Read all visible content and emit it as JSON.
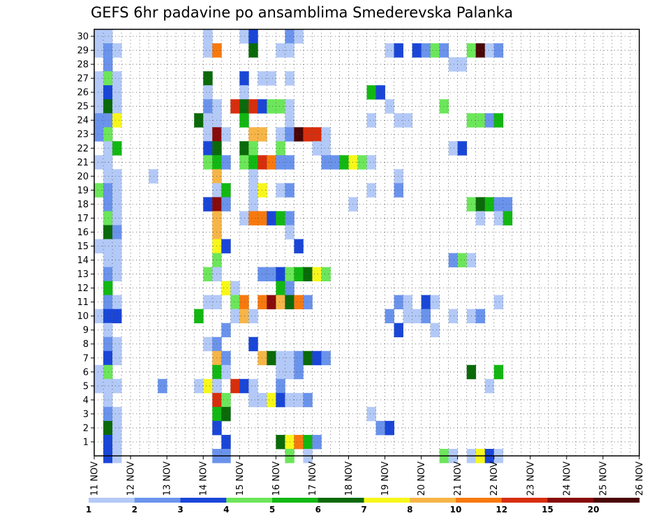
{
  "chart_data": {
    "type": "heatmap",
    "title": "GEFS 6hr padavine po ansamblima Smederevska Palanka",
    "xlabel": "",
    "ylabel": "",
    "x_ticks": [
      "11 NOV",
      "12 NOV",
      "13 NOV",
      "14 NOV",
      "15 NOV",
      "16 NOV",
      "17 NOV",
      "18 NOV",
      "19 NOV",
      "20 NOV",
      "21 NOV",
      "22 NOV",
      "23 NOV",
      "24 NOV",
      "25 NOV",
      "26 NOV"
    ],
    "x_range_days": [
      0,
      15
    ],
    "y_range": [
      0,
      30
    ],
    "y_ticks": [
      1,
      2,
      3,
      4,
      5,
      6,
      7,
      8,
      9,
      10,
      11,
      12,
      13,
      14,
      15,
      16,
      17,
      18,
      19,
      20,
      21,
      22,
      23,
      24,
      25,
      26,
      27,
      28,
      29,
      30
    ],
    "grid": true,
    "time_step_hours": 6,
    "colorbar": {
      "labels": [
        "1",
        "2",
        "3",
        "4",
        "5",
        "6",
        "7",
        "8",
        "10",
        "12",
        "15",
        "20"
      ],
      "colors": [
        "#b3c9f7",
        "#6a93ec",
        "#1a46d8",
        "#6ce65a",
        "#12b812",
        "#0a6a0a",
        "#f7f71a",
        "#f7b547",
        "#f7790d",
        "#d72e0d",
        "#880a0a",
        "#4a0505"
      ]
    },
    "cells": [
      [
        0,
        30,
        1
      ],
      [
        1,
        30,
        1
      ],
      [
        12,
        30,
        1
      ],
      [
        16,
        30,
        1
      ],
      [
        17,
        30,
        3
      ],
      [
        21,
        30,
        2
      ],
      [
        22,
        30,
        1
      ],
      [
        0,
        29,
        1
      ],
      [
        1,
        29,
        2
      ],
      [
        2,
        29,
        1
      ],
      [
        12,
        29,
        1
      ],
      [
        13,
        29,
        9
      ],
      [
        17,
        29,
        6
      ],
      [
        20,
        29,
        1
      ],
      [
        21,
        29,
        1
      ],
      [
        32,
        29,
        1
      ],
      [
        33,
        29,
        3
      ],
      [
        35,
        29,
        3
      ],
      [
        36,
        29,
        2
      ],
      [
        37,
        29,
        4
      ],
      [
        38,
        29,
        2
      ],
      [
        41,
        29,
        4
      ],
      [
        42,
        29,
        12
      ],
      [
        43,
        29,
        1
      ],
      [
        44,
        29,
        2
      ],
      [
        1,
        28,
        2
      ],
      [
        39,
        28,
        1
      ],
      [
        40,
        28,
        1
      ],
      [
        0,
        27,
        1
      ],
      [
        1,
        27,
        4
      ],
      [
        2,
        27,
        1
      ],
      [
        12,
        27,
        6
      ],
      [
        16,
        27,
        3
      ],
      [
        18,
        27,
        1
      ],
      [
        19,
        27,
        1
      ],
      [
        21,
        27,
        1
      ],
      [
        0,
        26,
        1
      ],
      [
        1,
        26,
        3
      ],
      [
        2,
        26,
        1
      ],
      [
        12,
        26,
        1
      ],
      [
        16,
        26,
        1
      ],
      [
        30,
        26,
        5
      ],
      [
        31,
        26,
        3
      ],
      [
        0,
        25,
        1
      ],
      [
        1,
        25,
        6
      ],
      [
        2,
        25,
        1
      ],
      [
        12,
        25,
        2
      ],
      [
        13,
        25,
        1
      ],
      [
        15,
        25,
        10
      ],
      [
        16,
        25,
        6
      ],
      [
        17,
        25,
        10
      ],
      [
        18,
        25,
        3
      ],
      [
        19,
        25,
        4
      ],
      [
        20,
        25,
        4
      ],
      [
        21,
        25,
        1
      ],
      [
        32,
        25,
        1
      ],
      [
        38,
        25,
        4
      ],
      [
        0,
        24,
        2
      ],
      [
        1,
        24,
        2
      ],
      [
        2,
        24,
        7
      ],
      [
        11,
        24,
        6
      ],
      [
        12,
        24,
        1
      ],
      [
        13,
        24,
        1
      ],
      [
        16,
        24,
        5
      ],
      [
        21,
        24,
        1
      ],
      [
        30,
        24,
        1
      ],
      [
        33,
        24,
        1
      ],
      [
        34,
        24,
        1
      ],
      [
        41,
        24,
        4
      ],
      [
        42,
        24,
        4
      ],
      [
        43,
        24,
        2
      ],
      [
        44,
        24,
        5
      ],
      [
        0,
        23,
        2
      ],
      [
        1,
        23,
        4
      ],
      [
        12,
        23,
        1
      ],
      [
        13,
        23,
        11
      ],
      [
        14,
        23,
        1
      ],
      [
        17,
        23,
        8
      ],
      [
        18,
        23,
        8
      ],
      [
        20,
        23,
        1
      ],
      [
        21,
        23,
        2
      ],
      [
        22,
        23,
        12
      ],
      [
        23,
        23,
        10
      ],
      [
        24,
        23,
        10
      ],
      [
        25,
        23,
        1
      ],
      [
        1,
        22,
        1
      ],
      [
        2,
        22,
        5
      ],
      [
        12,
        22,
        3
      ],
      [
        13,
        22,
        6
      ],
      [
        16,
        22,
        6
      ],
      [
        17,
        22,
        4
      ],
      [
        20,
        22,
        4
      ],
      [
        24,
        22,
        1
      ],
      [
        25,
        22,
        1
      ],
      [
        39,
        22,
        1
      ],
      [
        40,
        22,
        3
      ],
      [
        0,
        21,
        1
      ],
      [
        1,
        21,
        1
      ],
      [
        12,
        21,
        4
      ],
      [
        13,
        21,
        5
      ],
      [
        14,
        21,
        2
      ],
      [
        16,
        21,
        4
      ],
      [
        17,
        21,
        5
      ],
      [
        18,
        21,
        10
      ],
      [
        19,
        21,
        9
      ],
      [
        20,
        21,
        2
      ],
      [
        21,
        21,
        2
      ],
      [
        25,
        21,
        2
      ],
      [
        26,
        21,
        2
      ],
      [
        27,
        21,
        5
      ],
      [
        28,
        21,
        7
      ],
      [
        29,
        21,
        4
      ],
      [
        30,
        21,
        1
      ],
      [
        1,
        20,
        1
      ],
      [
        2,
        20,
        1
      ],
      [
        6,
        20,
        1
      ],
      [
        13,
        20,
        8
      ],
      [
        17,
        20,
        1
      ],
      [
        33,
        20,
        1
      ],
      [
        0,
        19,
        4
      ],
      [
        1,
        19,
        2
      ],
      [
        2,
        19,
        1
      ],
      [
        13,
        19,
        1
      ],
      [
        14,
        19,
        5
      ],
      [
        17,
        19,
        1
      ],
      [
        18,
        19,
        7
      ],
      [
        20,
        19,
        1
      ],
      [
        21,
        19,
        2
      ],
      [
        30,
        19,
        1
      ],
      [
        33,
        19,
        2
      ],
      [
        1,
        18,
        2
      ],
      [
        2,
        18,
        1
      ],
      [
        12,
        18,
        3
      ],
      [
        13,
        18,
        11
      ],
      [
        14,
        18,
        2
      ],
      [
        17,
        18,
        1
      ],
      [
        28,
        18,
        1
      ],
      [
        41,
        18,
        4
      ],
      [
        42,
        18,
        6
      ],
      [
        43,
        18,
        5
      ],
      [
        44,
        18,
        2
      ],
      [
        45,
        18,
        2
      ],
      [
        1,
        17,
        4
      ],
      [
        2,
        17,
        1
      ],
      [
        13,
        17,
        8
      ],
      [
        16,
        17,
        1
      ],
      [
        17,
        17,
        9
      ],
      [
        18,
        17,
        9
      ],
      [
        19,
        17,
        3
      ],
      [
        20,
        17,
        5
      ],
      [
        21,
        17,
        2
      ],
      [
        42,
        17,
        1
      ],
      [
        44,
        17,
        1
      ],
      [
        45,
        17,
        5
      ],
      [
        1,
        16,
        6
      ],
      [
        2,
        16,
        2
      ],
      [
        13,
        16,
        8
      ],
      [
        21,
        16,
        1
      ],
      [
        0,
        15,
        1
      ],
      [
        1,
        15,
        1
      ],
      [
        2,
        15,
        1
      ],
      [
        13,
        15,
        7
      ],
      [
        14,
        15,
        3
      ],
      [
        22,
        15,
        3
      ],
      [
        1,
        14,
        1
      ],
      [
        2,
        14,
        1
      ],
      [
        13,
        14,
        4
      ],
      [
        39,
        14,
        2
      ],
      [
        40,
        14,
        4
      ],
      [
        41,
        14,
        1
      ],
      [
        1,
        13,
        2
      ],
      [
        2,
        13,
        1
      ],
      [
        12,
        13,
        4
      ],
      [
        13,
        13,
        1
      ],
      [
        18,
        13,
        2
      ],
      [
        19,
        13,
        2
      ],
      [
        20,
        13,
        3
      ],
      [
        21,
        13,
        4
      ],
      [
        22,
        13,
        5
      ],
      [
        23,
        13,
        6
      ],
      [
        24,
        13,
        7
      ],
      [
        25,
        13,
        4
      ],
      [
        1,
        12,
        5
      ],
      [
        14,
        12,
        7
      ],
      [
        15,
        12,
        1
      ],
      [
        20,
        12,
        5
      ],
      [
        21,
        12,
        2
      ],
      [
        1,
        11,
        2
      ],
      [
        2,
        11,
        1
      ],
      [
        12,
        11,
        1
      ],
      [
        13,
        11,
        1
      ],
      [
        15,
        11,
        4
      ],
      [
        16,
        11,
        9
      ],
      [
        18,
        11,
        9
      ],
      [
        19,
        11,
        11
      ],
      [
        20,
        11,
        8
      ],
      [
        21,
        11,
        6
      ],
      [
        22,
        11,
        9
      ],
      [
        23,
        11,
        2
      ],
      [
        33,
        11,
        2
      ],
      [
        34,
        11,
        1
      ],
      [
        36,
        11,
        3
      ],
      [
        37,
        11,
        1
      ],
      [
        44,
        11,
        1
      ],
      [
        0,
        10,
        1
      ],
      [
        1,
        10,
        3
      ],
      [
        2,
        10,
        3
      ],
      [
        11,
        10,
        5
      ],
      [
        15,
        10,
        1
      ],
      [
        16,
        10,
        8
      ],
      [
        17,
        10,
        1
      ],
      [
        32,
        10,
        2
      ],
      [
        34,
        10,
        1
      ],
      [
        35,
        10,
        1
      ],
      [
        36,
        10,
        2
      ],
      [
        39,
        10,
        1
      ],
      [
        41,
        10,
        1
      ],
      [
        42,
        10,
        2
      ],
      [
        1,
        9,
        1
      ],
      [
        14,
        9,
        2
      ],
      [
        33,
        9,
        3
      ],
      [
        37,
        9,
        1
      ],
      [
        1,
        8,
        2
      ],
      [
        2,
        8,
        1
      ],
      [
        12,
        8,
        1
      ],
      [
        13,
        8,
        2
      ],
      [
        17,
        8,
        3
      ],
      [
        1,
        7,
        3
      ],
      [
        2,
        7,
        1
      ],
      [
        13,
        7,
        8
      ],
      [
        14,
        7,
        2
      ],
      [
        18,
        7,
        8
      ],
      [
        19,
        7,
        6
      ],
      [
        20,
        7,
        1
      ],
      [
        21,
        7,
        1
      ],
      [
        22,
        7,
        2
      ],
      [
        23,
        7,
        6
      ],
      [
        24,
        7,
        3
      ],
      [
        25,
        7,
        2
      ],
      [
        0,
        6,
        1
      ],
      [
        1,
        6,
        4
      ],
      [
        13,
        6,
        5
      ],
      [
        14,
        6,
        1
      ],
      [
        20,
        6,
        1
      ],
      [
        21,
        6,
        1
      ],
      [
        22,
        6,
        2
      ],
      [
        41,
        6,
        6
      ],
      [
        44,
        6,
        5
      ],
      [
        0,
        5,
        1
      ],
      [
        1,
        5,
        1
      ],
      [
        2,
        5,
        1
      ],
      [
        7,
        5,
        2
      ],
      [
        11,
        5,
        1
      ],
      [
        12,
        5,
        7
      ],
      [
        13,
        5,
        1
      ],
      [
        15,
        5,
        10
      ],
      [
        16,
        5,
        3
      ],
      [
        17,
        5,
        1
      ],
      [
        20,
        5,
        2
      ],
      [
        43,
        5,
        1
      ],
      [
        1,
        4,
        1
      ],
      [
        13,
        4,
        10
      ],
      [
        14,
        4,
        4
      ],
      [
        17,
        4,
        1
      ],
      [
        18,
        4,
        1
      ],
      [
        19,
        4,
        7
      ],
      [
        20,
        4,
        3
      ],
      [
        21,
        4,
        1
      ],
      [
        22,
        4,
        1
      ],
      [
        23,
        4,
        2
      ],
      [
        1,
        3,
        2
      ],
      [
        2,
        3,
        1
      ],
      [
        13,
        3,
        5
      ],
      [
        14,
        3,
        6
      ],
      [
        30,
        3,
        1
      ],
      [
        1,
        2,
        6
      ],
      [
        2,
        2,
        1
      ],
      [
        13,
        2,
        3
      ],
      [
        31,
        2,
        2
      ],
      [
        32,
        2,
        3
      ],
      [
        1,
        1,
        3
      ],
      [
        2,
        1,
        1
      ],
      [
        14,
        1,
        3
      ],
      [
        20,
        1,
        6
      ],
      [
        21,
        1,
        7
      ],
      [
        22,
        1,
        9
      ],
      [
        23,
        1,
        5
      ],
      [
        24,
        1,
        2
      ],
      [
        1,
        0,
        3
      ],
      [
        2,
        0,
        1
      ],
      [
        13,
        0,
        2
      ],
      [
        14,
        0,
        2
      ],
      [
        21,
        0,
        4
      ],
      [
        23,
        0,
        1
      ],
      [
        38,
        0,
        4
      ],
      [
        39,
        0,
        1
      ],
      [
        41,
        0,
        1
      ],
      [
        42,
        0,
        7
      ],
      [
        43,
        0,
        3
      ],
      [
        44,
        0,
        1
      ]
    ]
  }
}
